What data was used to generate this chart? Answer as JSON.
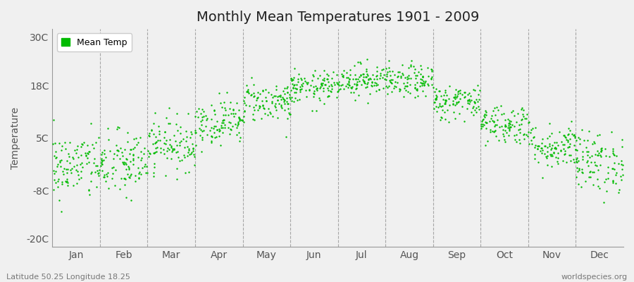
{
  "title": "Monthly Mean Temperatures 1901 - 2009",
  "ylabel": "Temperature",
  "xlabel_labels": [
    "Jan",
    "Feb",
    "Mar",
    "Apr",
    "May",
    "Jun",
    "Jul",
    "Aug",
    "Sep",
    "Oct",
    "Nov",
    "Dec"
  ],
  "ytick_labels": [
    "-20C",
    "-8C",
    "5C",
    "18C",
    "30C"
  ],
  "ytick_values": [
    -20,
    -8,
    5,
    18,
    30
  ],
  "ylim": [
    -22,
    32
  ],
  "legend_label": "Mean Temp",
  "dot_color": "#00bb00",
  "bg_color": "#f0f0f0",
  "plot_bg_color": "#f0f0f0",
  "footer_left": "Latitude 50.25 Longitude 18.25",
  "footer_right": "worldspecies.org",
  "monthly_means": [
    -2.0,
    -1.5,
    3.5,
    9.0,
    14.0,
    17.5,
    19.5,
    19.0,
    14.0,
    8.5,
    3.0,
    -1.0
  ],
  "monthly_stds": [
    4.2,
    4.2,
    3.2,
    2.8,
    2.5,
    2.0,
    2.0,
    2.0,
    2.2,
    2.5,
    2.8,
    3.8
  ],
  "num_years": 109,
  "vline_color": "#888888",
  "spine_color": "#999999",
  "tick_color": "#555555",
  "title_fontsize": 14,
  "axis_fontsize": 10,
  "footer_fontsize": 8,
  "dot_size": 3
}
